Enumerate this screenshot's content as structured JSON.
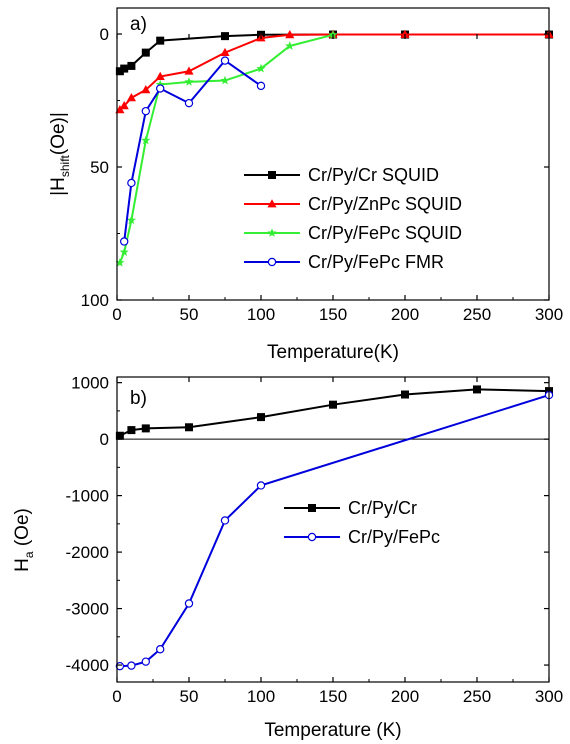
{
  "chart_data": [
    {
      "type": "line",
      "panel_label": "a)",
      "xlabel": "Temperature(K)",
      "ylabel_main": "|H",
      "ylabel_sub": "shift",
      "ylabel_tail": "(Oe)|",
      "xlim": [
        0,
        300
      ],
      "ylim": [
        100,
        0
      ],
      "y_inverted": true,
      "xticks": [
        "0",
        "50",
        "100",
        "150",
        "200",
        "250",
        "300"
      ],
      "yticks": [
        "0",
        "50",
        "100"
      ],
      "legend_position": "center-right",
      "series": [
        {
          "name": "Cr/Py/Cr SQUID",
          "color": "#000000",
          "marker": "square",
          "x": [
            2,
            5,
            10,
            20,
            30,
            75,
            100,
            150,
            200,
            300
          ],
          "y": [
            14,
            13,
            12,
            7,
            2.5,
            0.8,
            0.3,
            0.2,
            0.2,
            0.2
          ]
        },
        {
          "name": "Cr/Py/ZnPc SQUID",
          "color": "#ff0000",
          "marker": "triangle",
          "x": [
            2,
            5,
            10,
            20,
            30,
            50,
            75,
            100,
            120,
            150,
            200,
            300
          ],
          "y": [
            28.5,
            27,
            24,
            21,
            16,
            14,
            7,
            1.5,
            0.3,
            0.2,
            0.2,
            0.2
          ]
        },
        {
          "name": "Cr/Py/FePc SQUID",
          "color": "#33ee33",
          "marker": "star",
          "x": [
            2,
            5,
            10,
            20,
            30,
            50,
            75,
            100,
            120,
            150
          ],
          "y": [
            86,
            82,
            70,
            40,
            19,
            18,
            17.5,
            13,
            4.5,
            0.3
          ]
        },
        {
          "name": "Cr/Py/FePc FMR",
          "color": "#0000dd",
          "marker": "circle-open",
          "x": [
            5,
            10,
            20,
            30,
            50,
            75,
            100
          ],
          "y": [
            78,
            56,
            29,
            20.5,
            26,
            10,
            19.5
          ]
        }
      ]
    },
    {
      "type": "line",
      "panel_label": "b)",
      "xlabel": "Temperature (K)",
      "ylabel_main": "H",
      "ylabel_sub": "a",
      "ylabel_tail": " (Oe)",
      "xlim": [
        0,
        300
      ],
      "ylim": [
        -4300,
        1100
      ],
      "xticks": [
        "0",
        "50",
        "100",
        "150",
        "200",
        "250",
        "300"
      ],
      "yticks": [
        "1000",
        "0",
        "-1000",
        "-2000",
        "-3000",
        "-4000"
      ],
      "zero_line": true,
      "legend_position": "center-right",
      "series": [
        {
          "name": "Cr/Py/Cr",
          "color": "#000000",
          "marker": "square",
          "x": [
            2,
            10,
            20,
            50,
            100,
            150,
            200,
            250,
            300
          ],
          "y": [
            60,
            160,
            190,
            210,
            390,
            610,
            790,
            880,
            850
          ]
        },
        {
          "name": "Cr/Py/FePc",
          "color": "#0000dd",
          "marker": "circle-open",
          "x": [
            2,
            10,
            20,
            30,
            50,
            75,
            100,
            300
          ],
          "y": [
            -4020,
            -4010,
            -3940,
            -3720,
            -2910,
            -1440,
            -820,
            780
          ]
        }
      ]
    }
  ]
}
